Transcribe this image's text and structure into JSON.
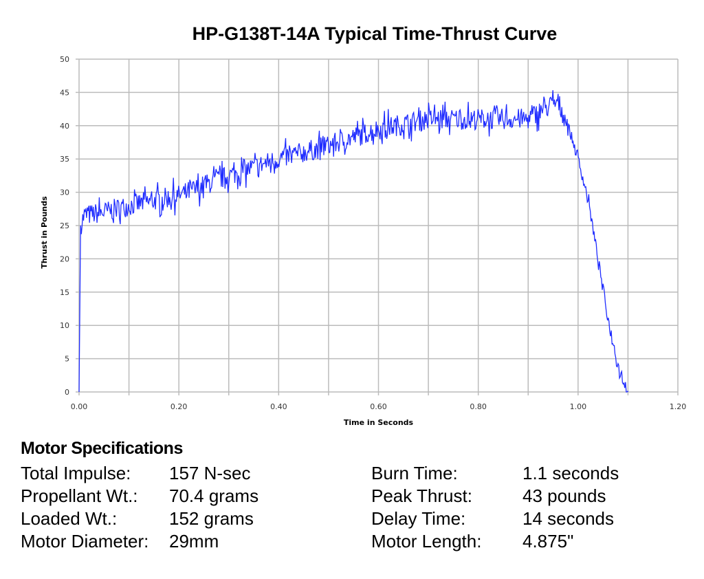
{
  "chart_data": {
    "type": "line",
    "title": "HP-G138T-14A  Typical Time-Thrust Curve",
    "xlabel": "Time in Seconds",
    "ylabel": "Thrust in Pounds",
    "xlim": [
      0,
      1.2
    ],
    "ylim": [
      0,
      50
    ],
    "xticks": [
      "0.00",
      "0.20",
      "0.40",
      "0.60",
      "0.80",
      "1.00",
      "1.20"
    ],
    "yticks": [
      "0",
      "5",
      "10",
      "15",
      "20",
      "25",
      "30",
      "35",
      "40",
      "45",
      "50"
    ],
    "grid": true,
    "series_color": "#1f2cff",
    "series": [
      {
        "name": "Thrust",
        "x": [
          0,
          0.003,
          0.01,
          0.05,
          0.1,
          0.2,
          0.3,
          0.4,
          0.5,
          0.6,
          0.7,
          0.8,
          0.9,
          0.93,
          0.96,
          0.98,
          1.0,
          1.02,
          1.04,
          1.06,
          1.08,
          1.1
        ],
        "y": [
          0,
          25,
          26.5,
          27,
          28,
          29.5,
          32.5,
          35,
          37,
          39.5,
          41,
          41,
          41,
          42.5,
          43.5,
          40,
          35,
          29,
          20,
          11,
          4,
          0
        ]
      }
    ]
  },
  "specs": {
    "heading": "Motor Specifications",
    "left": [
      {
        "label": "Total Impulse:",
        "value": "157 N-sec"
      },
      {
        "label": "Propellant Wt.:",
        "value": "70.4 grams"
      },
      {
        "label": "Loaded Wt.:",
        "value": "152 grams"
      },
      {
        "label": "Motor Diameter:",
        "value": "29mm"
      }
    ],
    "right": [
      {
        "label": "Burn Time:",
        "value": "1.1 seconds"
      },
      {
        "label": "Peak Thrust:",
        "value": "43 pounds"
      },
      {
        "label": "Delay Time:",
        "value": "14 seconds"
      },
      {
        "label": "Motor Length:",
        "value": "4.875\""
      }
    ]
  }
}
